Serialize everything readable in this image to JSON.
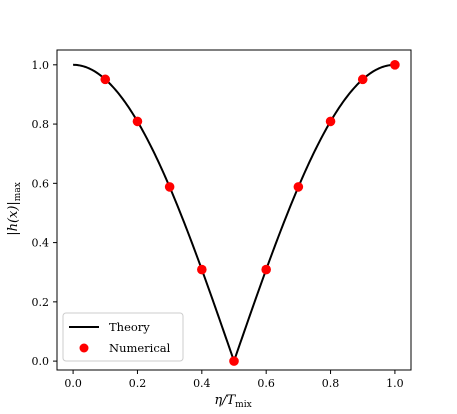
{
  "chart_data": {
    "type": "line",
    "xlabel_main": "η/T",
    "xlabel_sub": "mix",
    "ylabel_main": "|h(x)|",
    "ylabel_sub": "max",
    "xlim": [
      -0.05,
      1.05
    ],
    "ylim": [
      -0.03,
      1.05
    ],
    "x_ticks": [
      0.0,
      0.2,
      0.4,
      0.6,
      0.8,
      1.0
    ],
    "x_tick_labels": [
      "0.0",
      "0.2",
      "0.4",
      "0.6",
      "0.8",
      "1.0"
    ],
    "y_ticks": [
      0.0,
      0.2,
      0.4,
      0.6,
      0.8,
      1.0
    ],
    "y_tick_labels": [
      "0.0",
      "0.2",
      "0.4",
      "0.6",
      "0.8",
      "1.0"
    ],
    "grid": false,
    "legend_position": "lower-left",
    "series": [
      {
        "name": "Theory",
        "kind": "line",
        "color": "#000000",
        "function": "abs(cos(pi*x))",
        "x_range": [
          0.0,
          1.0
        ]
      },
      {
        "name": "Numerical",
        "kind": "scatter",
        "color": "#ff0000",
        "x": [
          0.1,
          0.2,
          0.3,
          0.4,
          0.5,
          0.6,
          0.7,
          0.8,
          0.9,
          1.0
        ],
        "y": [
          0.951,
          0.809,
          0.588,
          0.309,
          0.0,
          0.309,
          0.588,
          0.809,
          0.951,
          1.0
        ]
      }
    ]
  }
}
